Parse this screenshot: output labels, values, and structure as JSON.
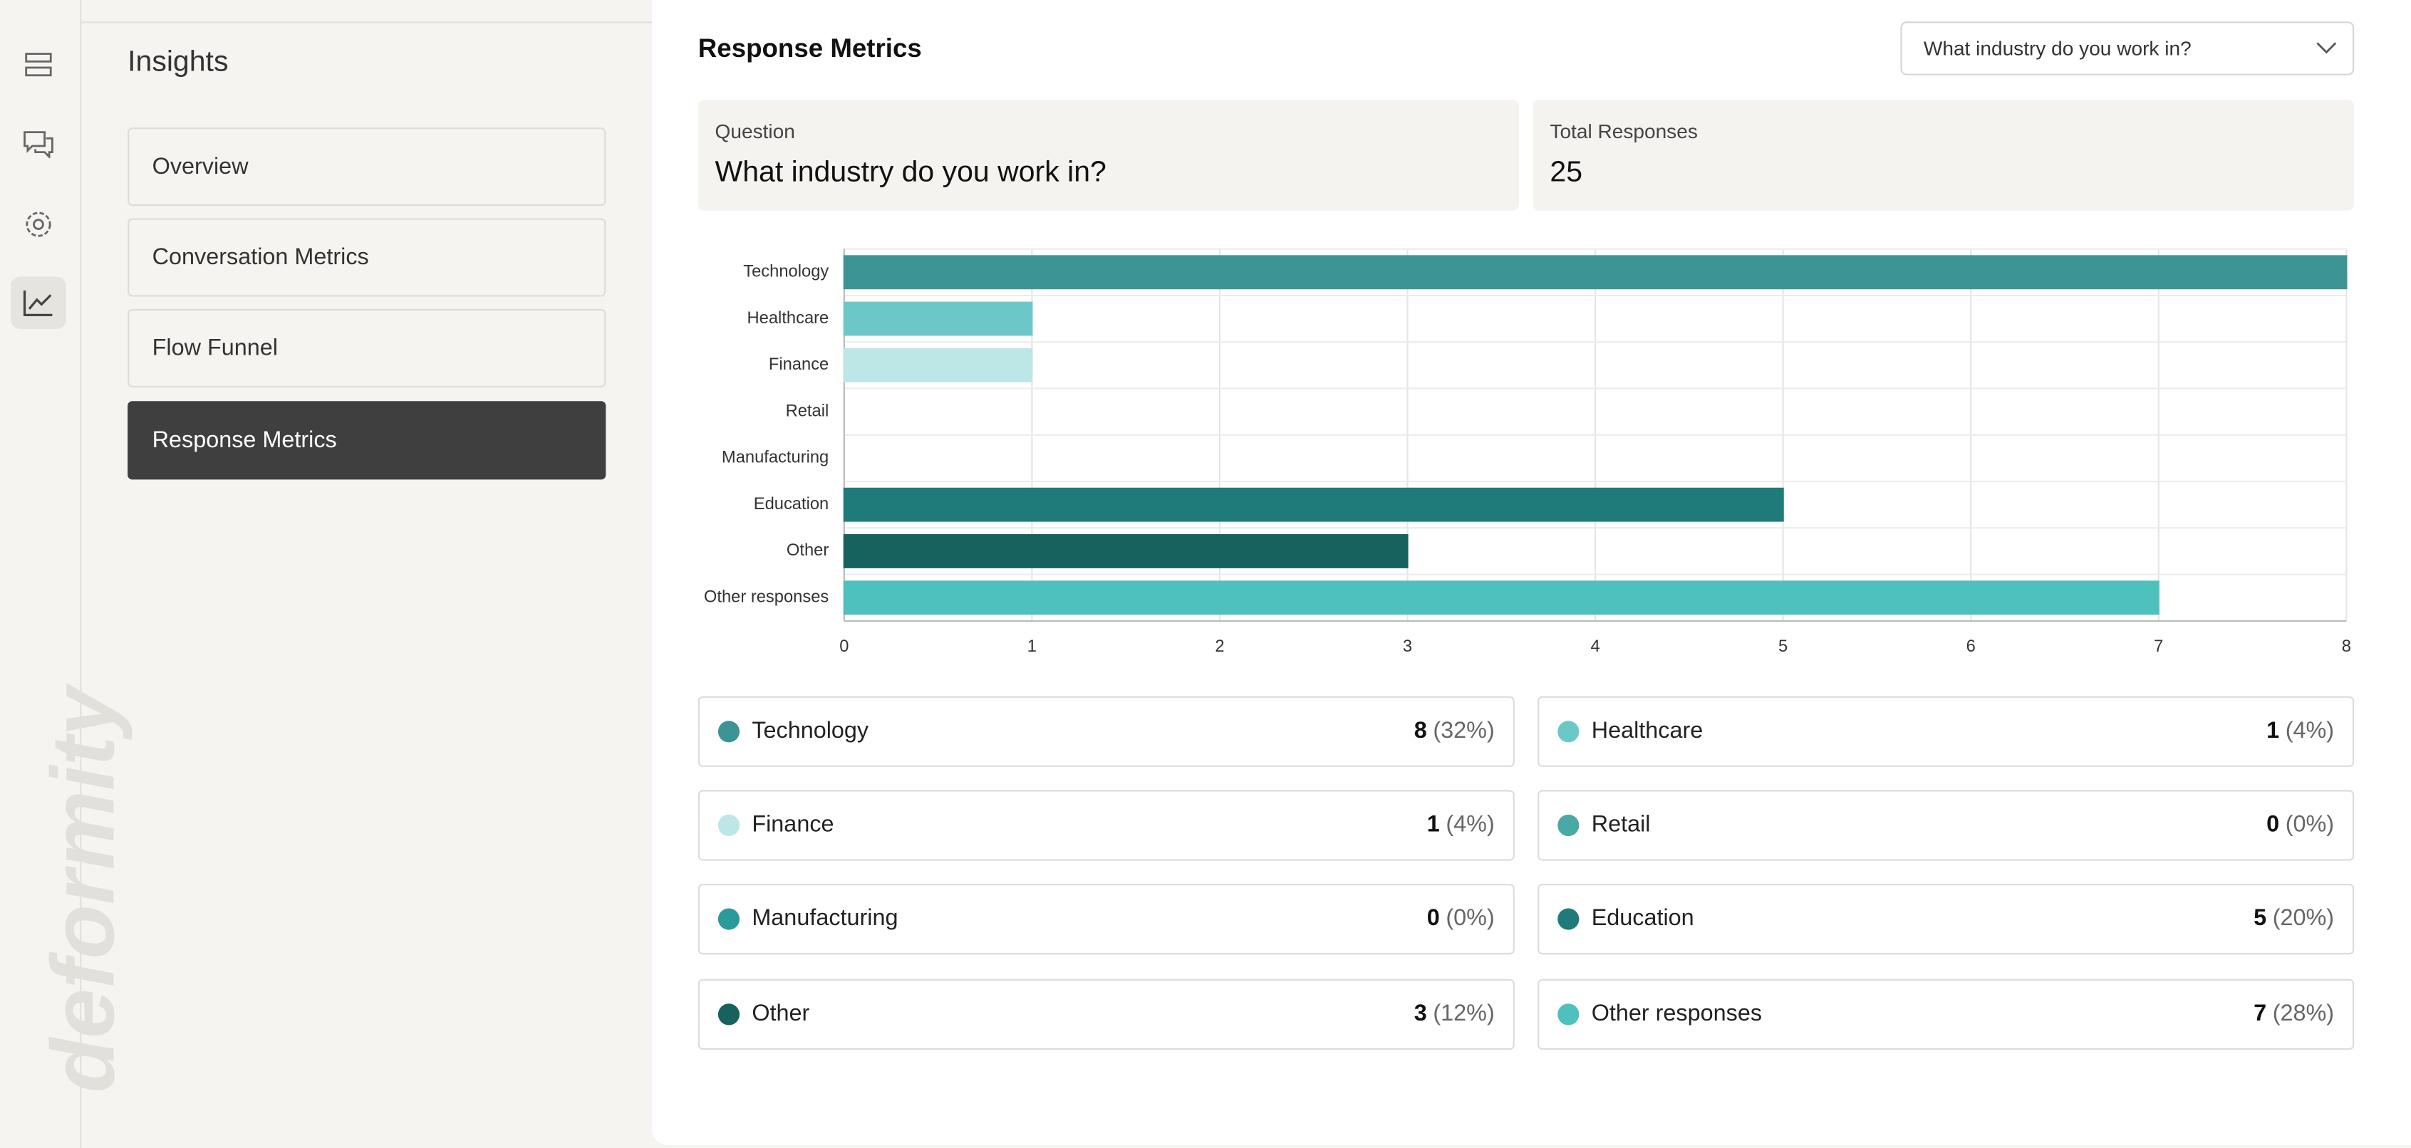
{
  "brand": "deformity",
  "nav": {
    "title": "Insights",
    "items": [
      "Overview",
      "Conversation Metrics",
      "Flow Funnel",
      "Response Metrics"
    ],
    "active": 3
  },
  "main": {
    "title": "Response Metrics",
    "dropdown": "What industry do you work in?",
    "question_label": "Question",
    "question": "What industry do you work in?",
    "total_label": "Total Responses",
    "total": 25
  },
  "chart_data": {
    "type": "bar",
    "orientation": "horizontal",
    "categories": [
      "Technology",
      "Healthcare",
      "Finance",
      "Retail",
      "Manufacturing",
      "Education",
      "Other",
      "Other responses"
    ],
    "values": [
      8,
      1,
      1,
      0,
      0,
      5,
      3,
      7
    ],
    "value_labels": [
      "(32%)",
      "(4%)",
      "(4%)",
      "(0%)",
      "(0%)",
      "(20%)",
      "(12%)",
      "(28%)"
    ],
    "colors": [
      "#3d9494",
      "#6cc8c8",
      "#bde6e6",
      "#4aa8a6",
      "#2a9a9a",
      "#1f7a7a",
      "#17625f",
      "#4ec0bd"
    ],
    "xlim": [
      0,
      8
    ],
    "xticks": [
      0,
      1,
      2,
      3,
      4,
      5,
      6,
      7,
      8
    ],
    "grid": true
  }
}
